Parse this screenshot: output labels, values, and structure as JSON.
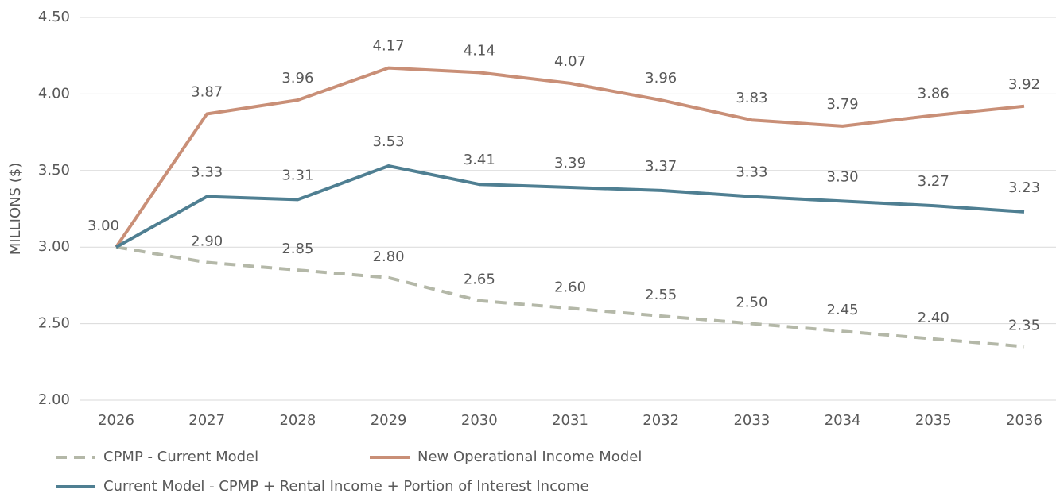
{
  "chart_data": {
    "type": "line",
    "y_label": "MILLIONS ($)",
    "categories": [
      "2026",
      "2027",
      "2028",
      "2029",
      "2030",
      "2031",
      "2032",
      "2033",
      "2034",
      "2035",
      "2036"
    ],
    "ylim": [
      2.0,
      4.5
    ],
    "yticks": [
      {
        "value": 2.0,
        "label": "2.00"
      },
      {
        "value": 2.5,
        "label": "2.50"
      },
      {
        "value": 3.0,
        "label": "3.00"
      },
      {
        "value": 3.5,
        "label": "3.50"
      },
      {
        "value": 4.0,
        "label": "4.00"
      },
      {
        "value": 4.5,
        "label": "4.50"
      }
    ],
    "grid": true,
    "series": [
      {
        "name": "CPMP - Current Model",
        "color": "#b4b8a8",
        "line_style": "dashed",
        "values": [
          3.0,
          2.9,
          2.85,
          2.8,
          2.65,
          2.6,
          2.55,
          2.5,
          2.45,
          2.4,
          2.35
        ],
        "value_labels": [
          "3.00",
          "2.90",
          "2.85",
          "2.80",
          "2.65",
          "2.60",
          "2.55",
          "2.50",
          "2.45",
          "2.40",
          "2.35"
        ]
      },
      {
        "name": "New Operational Income Model",
        "color": "#c98f77",
        "line_style": "solid",
        "values": [
          3.0,
          3.87,
          3.96,
          4.17,
          4.14,
          4.07,
          3.96,
          3.83,
          3.79,
          3.86,
          3.92
        ],
        "value_labels": [
          null,
          "3.87",
          "3.96",
          "4.17",
          "4.14",
          "4.07",
          "3.96",
          "3.83",
          "3.79",
          "3.86",
          "3.92"
        ]
      },
      {
        "name": "Current Model - CPMP + Rental Income + Portion of Interest Income",
        "color": "#4f7f92",
        "line_style": "solid",
        "values": [
          3.0,
          3.33,
          3.31,
          3.53,
          3.41,
          3.39,
          3.37,
          3.33,
          3.3,
          3.27,
          3.23
        ],
        "value_labels": [
          null,
          "3.33",
          "3.31",
          "3.53",
          "3.41",
          "3.39",
          "3.37",
          "3.33",
          "3.30",
          "3.27",
          "3.23"
        ]
      }
    ]
  }
}
